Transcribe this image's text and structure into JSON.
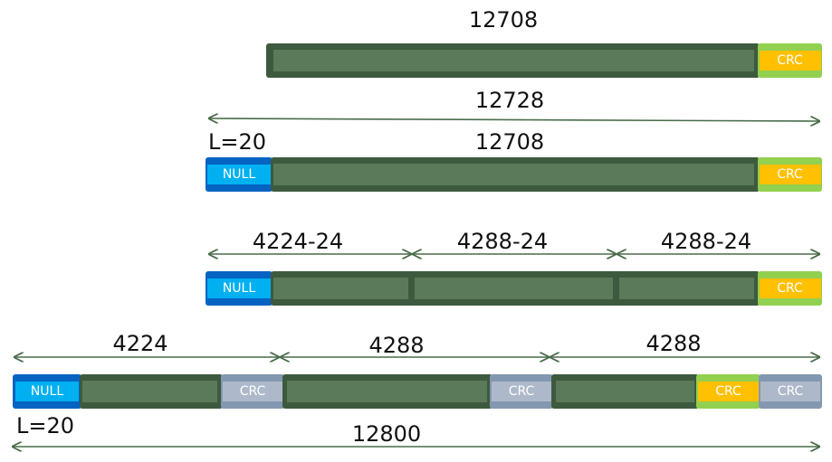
{
  "row1": {
    "length_label": "12708",
    "crc_label": "CRC"
  },
  "row2": {
    "total_label": "12728",
    "null_length_label": "L=20",
    "payload_label": "12708",
    "null_label": "NULL",
    "crc_label": "CRC"
  },
  "row3": {
    "seg_labels": [
      "4224-24",
      "4288-24",
      "4288-24"
    ],
    "null_label": "NULL",
    "crc_label": "CRC"
  },
  "row4": {
    "seg_labels": [
      "4224",
      "4288",
      "4288"
    ],
    "null_label": "NULL",
    "crc_labels": [
      "CRC",
      "CRC",
      "CRC",
      "CRC"
    ],
    "null_length_label": "L=20",
    "total_label": "12800"
  },
  "colors": {
    "bar_dark": "#3e5a3e",
    "bar_fill": "#5a7a5a",
    "arrow": "#4a6b4a",
    "null_outer": "#0563c1",
    "null_inner": "#00b0f0",
    "crc_outer": "#92d050",
    "crc_inner": "#ffc000",
    "crc_gray_outer": "#8497b0",
    "crc_gray_inner": "#adb9ca"
  }
}
